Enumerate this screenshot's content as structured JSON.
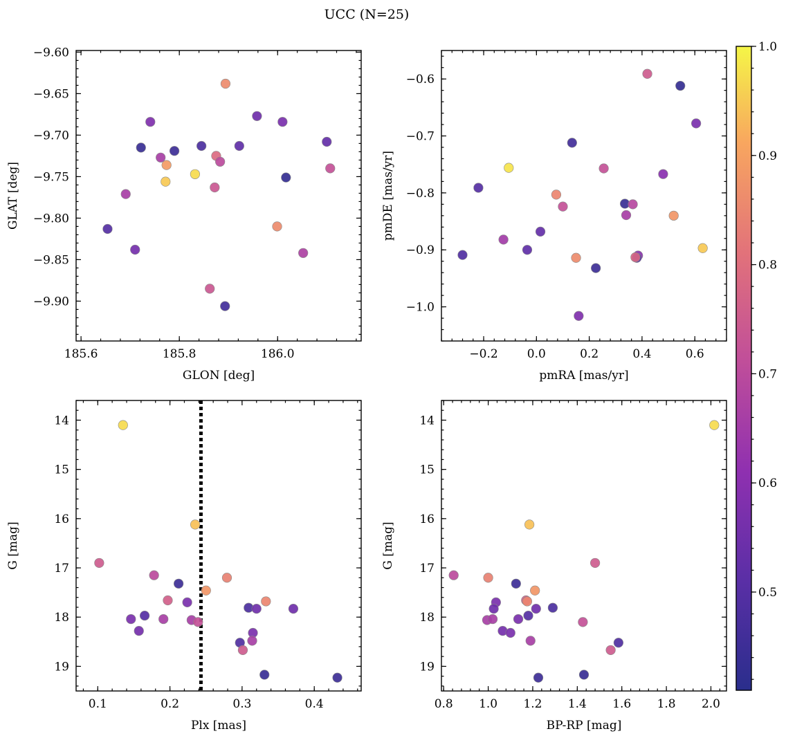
{
  "title": "UCC (N=25)",
  "colorbar": {
    "range": [
      0.41,
      1.0
    ],
    "ticks": [
      0.5,
      0.6,
      0.7,
      0.8,
      0.9,
      1.0
    ],
    "tick_labels": [
      "0.5",
      "0.6",
      "0.7",
      "0.8",
      "0.9",
      "1.0"
    ],
    "colormap": "plasma"
  },
  "chart_data": [
    {
      "type": "scatter",
      "xlabel": "GLON [deg]",
      "ylabel": "GLAT [deg]",
      "xlim": [
        185.59,
        186.17
      ],
      "ylim": [
        -9.948,
        -9.598
      ],
      "xticks": [
        185.6,
        185.8,
        186.0
      ],
      "xtick_labels": [
        "185.6",
        "185.8",
        "186.0"
      ],
      "yticks": [
        -9.6,
        -9.65,
        -9.7,
        -9.75,
        -9.8,
        -9.85,
        -9.9
      ],
      "ytick_labels": [
        "−9.60",
        "−9.65",
        "−9.70",
        "−9.75",
        "−9.80",
        "−9.85",
        "−9.90"
      ],
      "points": [
        {
          "x": 185.894,
          "y": -9.638,
          "c": 0.86
        },
        {
          "x": 185.741,
          "y": -9.684,
          "c": 0.58
        },
        {
          "x": 185.958,
          "y": -9.677,
          "c": 0.55
        },
        {
          "x": 186.01,
          "y": -9.684,
          "c": 0.57
        },
        {
          "x": 186.1,
          "y": -9.708,
          "c": 0.53
        },
        {
          "x": 185.722,
          "y": -9.715,
          "c": 0.44
        },
        {
          "x": 185.79,
          "y": -9.719,
          "c": 0.45
        },
        {
          "x": 185.845,
          "y": -9.713,
          "c": 0.48
        },
        {
          "x": 185.922,
          "y": -9.713,
          "c": 0.52
        },
        {
          "x": 185.762,
          "y": -9.727,
          "c": 0.66
        },
        {
          "x": 185.875,
          "y": -9.725,
          "c": 0.79
        },
        {
          "x": 185.883,
          "y": -9.732,
          "c": 0.7
        },
        {
          "x": 185.774,
          "y": -9.736,
          "c": 0.89
        },
        {
          "x": 186.107,
          "y": -9.74,
          "c": 0.72
        },
        {
          "x": 185.832,
          "y": -9.747,
          "c": 0.97
        },
        {
          "x": 185.772,
          "y": -9.756,
          "c": 0.95
        },
        {
          "x": 186.017,
          "y": -9.751,
          "c": 0.43
        },
        {
          "x": 185.872,
          "y": -9.763,
          "c": 0.74
        },
        {
          "x": 185.691,
          "y": -9.771,
          "c": 0.66
        },
        {
          "x": 185.654,
          "y": -9.813,
          "c": 0.5
        },
        {
          "x": 185.999,
          "y": -9.81,
          "c": 0.86
        },
        {
          "x": 185.71,
          "y": -9.838,
          "c": 0.56
        },
        {
          "x": 186.052,
          "y": -9.842,
          "c": 0.67
        },
        {
          "x": 185.862,
          "y": -9.885,
          "c": 0.74
        },
        {
          "x": 185.893,
          "y": -9.906,
          "c": 0.46
        }
      ]
    },
    {
      "type": "scatter",
      "xlabel": "pmRA [mas/yr]",
      "ylabel": "pmDE [mas/yr]",
      "xlim": [
        -0.36,
        0.72
      ],
      "ylim": [
        -1.06,
        -0.55
      ],
      "xticks": [
        -0.2,
        0.0,
        0.2,
        0.4,
        0.6
      ],
      "xtick_labels": [
        "−0.2",
        "0.0",
        "0.2",
        "0.4",
        "0.6"
      ],
      "yticks": [
        -0.6,
        -0.7,
        -0.8,
        -0.9,
        -1.0
      ],
      "ytick_labels": [
        "−0.6",
        "−0.7",
        "−0.8",
        "−0.9",
        "−1.0"
      ],
      "points": [
        {
          "x": 0.42,
          "y": -0.591,
          "c": 0.75
        },
        {
          "x": 0.545,
          "y": -0.612,
          "c": 0.43
        },
        {
          "x": 0.605,
          "y": -0.678,
          "c": 0.57
        },
        {
          "x": 0.135,
          "y": -0.712,
          "c": 0.46
        },
        {
          "x": -0.105,
          "y": -0.756,
          "c": 0.98
        },
        {
          "x": 0.255,
          "y": -0.757,
          "c": 0.72
        },
        {
          "x": 0.48,
          "y": -0.767,
          "c": 0.6
        },
        {
          "x": -0.22,
          "y": -0.791,
          "c": 0.5
        },
        {
          "x": 0.075,
          "y": -0.803,
          "c": 0.85
        },
        {
          "x": 0.335,
          "y": -0.819,
          "c": 0.44
        },
        {
          "x": 0.365,
          "y": -0.82,
          "c": 0.69
        },
        {
          "x": 0.1,
          "y": -0.824,
          "c": 0.72
        },
        {
          "x": 0.34,
          "y": -0.839,
          "c": 0.66
        },
        {
          "x": 0.52,
          "y": -0.84,
          "c": 0.88
        },
        {
          "x": 0.015,
          "y": -0.868,
          "c": 0.53
        },
        {
          "x": -0.125,
          "y": -0.882,
          "c": 0.65
        },
        {
          "x": 0.63,
          "y": -0.897,
          "c": 0.95
        },
        {
          "x": -0.035,
          "y": -0.9,
          "c": 0.52
        },
        {
          "x": -0.28,
          "y": -0.909,
          "c": 0.49
        },
        {
          "x": 0.385,
          "y": -0.91,
          "c": 0.6
        },
        {
          "x": 0.38,
          "y": -0.914,
          "c": 0.5
        },
        {
          "x": 0.375,
          "y": -0.913,
          "c": 0.78
        },
        {
          "x": 0.15,
          "y": -0.914,
          "c": 0.86
        },
        {
          "x": 0.225,
          "y": -0.932,
          "c": 0.45
        },
        {
          "x": 0.16,
          "y": -1.016,
          "c": 0.58
        }
      ]
    },
    {
      "type": "scatter",
      "xlabel": "Plx [mas]",
      "ylabel": "G [mag]",
      "xlim": [
        0.07,
        0.465
      ],
      "ylim": [
        19.5,
        13.6
      ],
      "xticks": [
        0.1,
        0.2,
        0.3,
        0.4
      ],
      "xtick_labels": [
        "0.1",
        "0.2",
        "0.3",
        "0.4"
      ],
      "yticks": [
        14,
        15,
        16,
        17,
        18,
        19
      ],
      "ytick_labels": [
        "14",
        "15",
        "16",
        "17",
        "18",
        "19"
      ],
      "vline": 0.243,
      "points": [
        {
          "x": 0.135,
          "y": 14.1,
          "c": 0.97
        },
        {
          "x": 0.235,
          "y": 16.12,
          "c": 0.94
        },
        {
          "x": 0.102,
          "y": 16.9,
          "c": 0.75
        },
        {
          "x": 0.178,
          "y": 17.15,
          "c": 0.7
        },
        {
          "x": 0.279,
          "y": 17.2,
          "c": 0.84
        },
        {
          "x": 0.212,
          "y": 17.32,
          "c": 0.45
        },
        {
          "x": 0.25,
          "y": 17.46,
          "c": 0.88
        },
        {
          "x": 0.197,
          "y": 17.66,
          "c": 0.76
        },
        {
          "x": 0.224,
          "y": 17.7,
          "c": 0.57
        },
        {
          "x": 0.333,
          "y": 17.68,
          "c": 0.85
        },
        {
          "x": 0.309,
          "y": 17.81,
          "c": 0.48
        },
        {
          "x": 0.32,
          "y": 17.83,
          "c": 0.55
        },
        {
          "x": 0.371,
          "y": 17.83,
          "c": 0.55
        },
        {
          "x": 0.165,
          "y": 17.97,
          "c": 0.5
        },
        {
          "x": 0.146,
          "y": 18.04,
          "c": 0.57
        },
        {
          "x": 0.191,
          "y": 18.04,
          "c": 0.66
        },
        {
          "x": 0.23,
          "y": 18.06,
          "c": 0.66
        },
        {
          "x": 0.239,
          "y": 18.1,
          "c": 0.72
        },
        {
          "x": 0.157,
          "y": 18.28,
          "c": 0.56
        },
        {
          "x": 0.315,
          "y": 18.32,
          "c": 0.57
        },
        {
          "x": 0.314,
          "y": 18.48,
          "c": 0.66
        },
        {
          "x": 0.297,
          "y": 18.52,
          "c": 0.49
        },
        {
          "x": 0.301,
          "y": 18.67,
          "c": 0.75
        },
        {
          "x": 0.331,
          "y": 19.17,
          "c": 0.44
        },
        {
          "x": 0.432,
          "y": 19.23,
          "c": 0.45
        }
      ]
    },
    {
      "type": "scatter",
      "xlabel": "BP-RP [mag]",
      "ylabel": "G [mag]",
      "xlim": [
        0.79,
        2.07
      ],
      "ylim": [
        19.5,
        13.6
      ],
      "xticks": [
        0.8,
        1.0,
        1.2,
        1.4,
        1.6,
        1.8,
        2.0
      ],
      "xtick_labels": [
        "0.8",
        "1.0",
        "1.2",
        "1.4",
        "1.6",
        "1.8",
        "2.0"
      ],
      "yticks": [
        14,
        15,
        16,
        17,
        18,
        19
      ],
      "ytick_labels": [
        "14",
        "15",
        "16",
        "17",
        "18",
        "19"
      ],
      "points": [
        {
          "x": 2.015,
          "y": 14.1,
          "c": 0.97
        },
        {
          "x": 1.185,
          "y": 16.12,
          "c": 0.94
        },
        {
          "x": 1.48,
          "y": 16.9,
          "c": 0.75
        },
        {
          "x": 0.845,
          "y": 17.15,
          "c": 0.7
        },
        {
          "x": 1.0,
          "y": 17.2,
          "c": 0.84
        },
        {
          "x": 1.125,
          "y": 17.32,
          "c": 0.45
        },
        {
          "x": 1.21,
          "y": 17.46,
          "c": 0.88
        },
        {
          "x": 1.17,
          "y": 17.66,
          "c": 0.76
        },
        {
          "x": 1.175,
          "y": 17.68,
          "c": 0.85
        },
        {
          "x": 1.035,
          "y": 17.7,
          "c": 0.57
        },
        {
          "x": 1.29,
          "y": 17.81,
          "c": 0.48
        },
        {
          "x": 1.025,
          "y": 17.83,
          "c": 0.55
        },
        {
          "x": 1.215,
          "y": 17.83,
          "c": 0.55
        },
        {
          "x": 1.18,
          "y": 17.97,
          "c": 0.5
        },
        {
          "x": 0.995,
          "y": 18.06,
          "c": 0.66
        },
        {
          "x": 1.02,
          "y": 18.04,
          "c": 0.66
        },
        {
          "x": 1.135,
          "y": 18.04,
          "c": 0.57
        },
        {
          "x": 1.425,
          "y": 18.1,
          "c": 0.72
        },
        {
          "x": 1.065,
          "y": 18.28,
          "c": 0.56
        },
        {
          "x": 1.1,
          "y": 18.32,
          "c": 0.57
        },
        {
          "x": 1.19,
          "y": 18.48,
          "c": 0.66
        },
        {
          "x": 1.585,
          "y": 18.52,
          "c": 0.49
        },
        {
          "x": 1.55,
          "y": 18.67,
          "c": 0.75
        },
        {
          "x": 1.43,
          "y": 19.17,
          "c": 0.44
        },
        {
          "x": 1.225,
          "y": 19.23,
          "c": 0.45
        }
      ]
    }
  ]
}
